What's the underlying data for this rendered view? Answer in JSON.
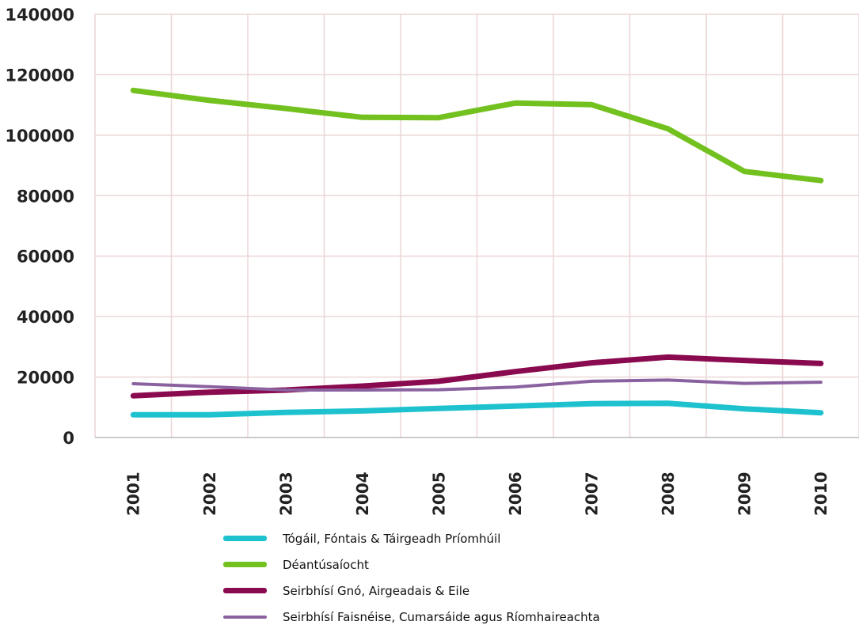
{
  "chart_data": {
    "type": "line",
    "title": "",
    "xlabel": "",
    "ylabel": "",
    "categories": [
      "2001",
      "2002",
      "2003",
      "2004",
      "2005",
      "2006",
      "2007",
      "2008",
      "2009",
      "2010"
    ],
    "ylim": [
      0,
      140000
    ],
    "yticks": [
      "0",
      "20000",
      "40000",
      "60000",
      "80000",
      "100000",
      "120000",
      "140000"
    ],
    "grid": true,
    "legend_position": "bottom",
    "series": [
      {
        "name": "Tógáil, Fóntais & Táirgeadh Príomhúil",
        "color": "#1ec2cf",
        "values": [
          7500,
          7500,
          8300,
          8800,
          9600,
          10400,
          11200,
          11300,
          9500,
          8200
        ]
      },
      {
        "name": "Déantúsaíocht",
        "color": "#72c11e",
        "values": [
          114800,
          111500,
          108800,
          105900,
          105800,
          110600,
          110100,
          102100,
          88000,
          85000
        ]
      },
      {
        "name": "Seirbhísí Gnó, Airgeadais & Eile",
        "color": "#8a0a4f",
        "values": [
          13800,
          15000,
          15700,
          17000,
          18600,
          21800,
          24700,
          26600,
          25500,
          24500
        ]
      },
      {
        "name": "Seirbhísí Faisnéise, Cumarsáide agus Ríomhaireachta",
        "color": "#8a62a0",
        "values": [
          17800,
          16800,
          15700,
          15700,
          15800,
          16700,
          18600,
          19000,
          17900,
          18300
        ]
      }
    ]
  }
}
